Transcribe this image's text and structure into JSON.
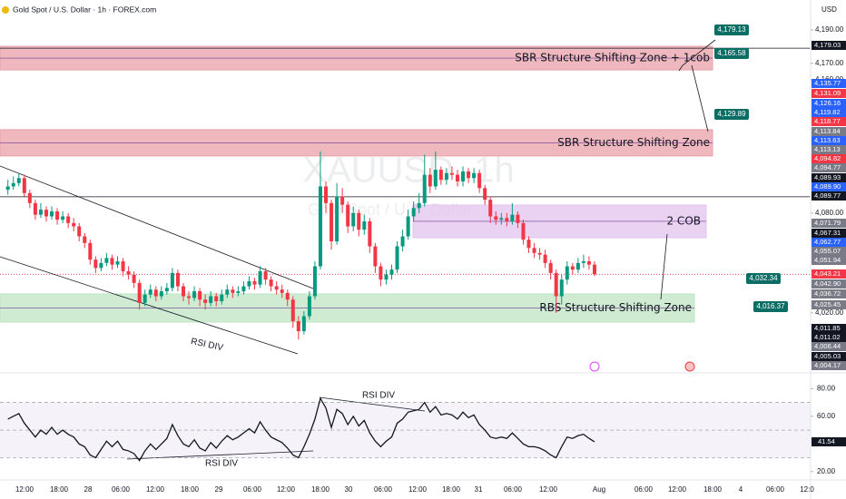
{
  "header": {
    "title": "Gold Spot / U.S. Dollar · 1h · FOREX.com",
    "currency": "USD"
  },
  "watermark": {
    "symbol": "XAUUSD, 1h",
    "name": "Gold Spot / U.S. Dollar"
  },
  "chart_data": [
    {
      "type": "candlestick",
      "up_color": "#089981",
      "down_color": "#f23645",
      "open": [
        4094,
        4096,
        4098,
        4101,
        4092,
        4086,
        4079,
        4082,
        4078,
        4081,
        4076,
        4078,
        4074,
        4072,
        4066,
        4062,
        4052,
        4047,
        4050,
        4053,
        4049,
        4051,
        4045,
        4043,
        4038,
        4026,
        4031,
        4034,
        4030,
        4033,
        4035,
        4044,
        4036,
        4030,
        4029,
        4033,
        4028,
        4026,
        4030,
        4027,
        4031,
        4034,
        4032,
        4033,
        4036,
        4039,
        4037,
        4045,
        4040,
        4036,
        4034,
        4032,
        4028,
        4015,
        4009,
        4018,
        4030,
        4048,
        4096,
        4086,
        4063,
        4090,
        4085,
        4072,
        4080,
        4070,
        4075,
        4060,
        4048,
        4040,
        4043,
        4046,
        4060,
        4066,
        4078,
        4083,
        4086,
        4103,
        4096,
        4106,
        4100,
        4104,
        4103,
        4099,
        4105,
        4101,
        4104,
        4095,
        4088,
        4078,
        4076,
        4077,
        4075,
        4079,
        4074,
        4064,
        4059,
        4056,
        4055,
        4050,
        4044,
        4030,
        4040,
        4048,
        4046,
        4050,
        4051,
        4049
      ],
      "high": [
        4100,
        4102,
        4104,
        4103,
        4094,
        4088,
        4086,
        4084,
        4084,
        4083,
        4081,
        4080,
        4077,
        4074,
        4068,
        4064,
        4054,
        4053,
        4056,
        4055,
        4054,
        4053,
        4048,
        4045,
        4040,
        4034,
        4037,
        4036,
        4036,
        4038,
        4047,
        4046,
        4038,
        4033,
        4036,
        4035,
        4031,
        4033,
        4032,
        4034,
        4037,
        4036,
        4036,
        4039,
        4042,
        4041,
        4048,
        4047,
        4042,
        4039,
        4037,
        4034,
        4030,
        4018,
        4021,
        4033,
        4051,
        4117,
        4099,
        4088,
        4098,
        4095,
        4087,
        4084,
        4082,
        4079,
        4077,
        4062,
        4050,
        4046,
        4049,
        4063,
        4070,
        4082,
        4087,
        4092,
        4115,
        4107,
        4117,
        4108,
        4107,
        4108,
        4106,
        4108,
        4107,
        4107,
        4106,
        4097,
        4090,
        4081,
        4080,
        4080,
        4086,
        4081,
        4076,
        4066,
        4062,
        4059,
        4058,
        4052,
        4046,
        4043,
        4051,
        4050,
        4053,
        4055,
        4054,
        4051
      ],
      "low": [
        4091,
        4094,
        4096,
        4090,
        4083,
        4076,
        4077,
        4075,
        4076,
        4073,
        4074,
        4071,
        4069,
        4063,
        4059,
        4049,
        4044,
        4045,
        4048,
        4046,
        4047,
        4042,
        4040,
        4035,
        4022,
        4024,
        4029,
        4027,
        4028,
        4031,
        4033,
        4033,
        4027,
        4025,
        4027,
        4024,
        4022,
        4024,
        4024,
        4025,
        4029,
        4029,
        4030,
        4031,
        4034,
        4034,
        4035,
        4037,
        4033,
        4031,
        4029,
        4024,
        4011,
        4004,
        4007,
        4016,
        4028,
        4046,
        4080,
        4058,
        4061,
        4080,
        4068,
        4069,
        4066,
        4067,
        4056,
        4044,
        4036,
        4037,
        4040,
        4044,
        4057,
        4064,
        4075,
        4080,
        4084,
        4092,
        4094,
        4097,
        4097,
        4100,
        4096,
        4096,
        4098,
        4098,
        4092,
        4085,
        4074,
        4073,
        4073,
        4072,
        4073,
        4071,
        4061,
        4056,
        4053,
        4052,
        4047,
        4040,
        4020,
        4025,
        4037,
        4043,
        4044,
        4047,
        4046,
        4042
      ],
      "close": [
        4096,
        4098,
        4101,
        4092,
        4086,
        4079,
        4082,
        4078,
        4081,
        4076,
        4078,
        4074,
        4072,
        4066,
        4062,
        4052,
        4047,
        4050,
        4053,
        4049,
        4051,
        4045,
        4043,
        4038,
        4026,
        4031,
        4034,
        4030,
        4033,
        4035,
        4044,
        4036,
        4030,
        4029,
        4033,
        4028,
        4026,
        4030,
        4027,
        4031,
        4034,
        4032,
        4033,
        4036,
        4039,
        4037,
        4045,
        4040,
        4036,
        4034,
        4032,
        4028,
        4015,
        4009,
        4018,
        4030,
        4048,
        4096,
        4086,
        4063,
        4090,
        4085,
        4072,
        4080,
        4070,
        4075,
        4060,
        4048,
        4040,
        4043,
        4046,
        4060,
        4066,
        4078,
        4083,
        4086,
        4103,
        4096,
        4106,
        4100,
        4104,
        4103,
        4099,
        4105,
        4101,
        4104,
        4095,
        4088,
        4078,
        4076,
        4077,
        4075,
        4079,
        4074,
        4064,
        4059,
        4056,
        4055,
        4050,
        4044,
        4030,
        4040,
        4048,
        4046,
        4050,
        4051,
        4049,
        4043.21
      ],
      "ylim": [
        3984.5,
        4208
      ],
      "yticks": [
        {
          "value": 4190,
          "label": "4,190.00"
        },
        {
          "value": 4170,
          "label": "4,170.00"
        },
        {
          "value": 4160,
          "label": "4,160.00"
        },
        {
          "value": 4080,
          "label": "4,080.00"
        },
        {
          "value": 4020,
          "label": "4,020.00"
        }
      ],
      "hlines": [
        4179.03,
        4089.77
      ],
      "zones": [
        {
          "label": "SBR Structure Shifting Zone + 1cob",
          "low": 4166,
          "high": 4180.2,
          "color": "#e8a0a8"
        },
        {
          "label": "SBR Structure Shifting Zone",
          "low": 4114.3,
          "high": 4130.1,
          "color": "#e8a0a8"
        },
        {
          "label": "2 COB",
          "low": 4065.2,
          "high": 4084.8,
          "color": "#e3c4ee"
        },
        {
          "label": "RBS Structure Shifting Zone",
          "low": 4014.5,
          "high": 4031.4,
          "color": "#bfe5c4"
        }
      ],
      "annotations": [
        "4,179.13",
        "4,165.58",
        "4,129.89",
        "4,032.34",
        "4,016.37",
        "RSI DIV"
      ],
      "price_labels": [
        {
          "value": 4179.03,
          "label": "4,179.03",
          "color": "#131722"
        },
        {
          "value": 4135.77,
          "label": "4,135.77",
          "color": "#2962ff"
        },
        {
          "value": 4131.09,
          "label": "4,131.09",
          "color": "#f23645"
        },
        {
          "value": 4126.16,
          "label": "4,126.16",
          "color": "#2962ff"
        },
        {
          "value": 4119.82,
          "label": "4,119.82",
          "color": "#2962ff"
        },
        {
          "value": 4118.77,
          "label": "4,118.77",
          "color": "#f23645"
        },
        {
          "value": 4113.84,
          "label": "4,113.84",
          "color": "#787b86"
        },
        {
          "value": 4113.63,
          "label": "4,113.63",
          "color": "#2962ff"
        },
        {
          "value": 4113.13,
          "label": "4,113.13",
          "color": "#787b86"
        },
        {
          "value": 4094.82,
          "label": "4,094.82",
          "color": "#f23645"
        },
        {
          "value": 4094.77,
          "label": "4,094.77",
          "color": "#787b86"
        },
        {
          "value": 4089.93,
          "label": "4,089.93",
          "color": "#131722"
        },
        {
          "value": 4089.9,
          "label": "4,089.90",
          "color": "#2962ff"
        },
        {
          "value": 4089.77,
          "label": "4,089.77",
          "color": "#131722"
        },
        {
          "value": 4071.79,
          "label": "4,071.79",
          "color": "#787b86"
        },
        {
          "value": 4067.31,
          "label": "4,067.31",
          "color": "#131722"
        },
        {
          "value": 4062.77,
          "label": "4,062.77",
          "color": "#2962ff"
        },
        {
          "value": 4055.07,
          "label": "4,055.07",
          "color": "#787b86"
        },
        {
          "value": 4051.94,
          "label": "4,051.94",
          "color": "#787b86"
        },
        {
          "value": 4043.21,
          "label": "4,043.21",
          "color": "#f23645"
        },
        {
          "value": 4042.9,
          "label": "4,042.90",
          "color": "#787b86"
        },
        {
          "value": 4036.72,
          "label": "4,036.72",
          "color": "#787b86"
        },
        {
          "value": 4025.45,
          "label": "4,025.45",
          "color": "#787b86"
        },
        {
          "value": 4011.85,
          "label": "4,011.85",
          "color": "#131722"
        },
        {
          "value": 4011.02,
          "label": "4,011.02",
          "color": "#131722"
        },
        {
          "value": 4006.44,
          "label": "4,006.44",
          "color": "#787b86"
        },
        {
          "value": 4005.03,
          "label": "4,005.03",
          "color": "#131722"
        },
        {
          "value": 4004.17,
          "label": "4,004.17",
          "color": "#787b86"
        }
      ],
      "x_labels": [
        "12:00",
        "18:00",
        "28",
        "06:00",
        "12:00",
        "18:00",
        "29",
        "06:00",
        "12:00",
        "18:00",
        "30",
        "06:00",
        "12:00",
        "18:00",
        "31",
        "06:00",
        "12:00",
        "Aug",
        "06:00",
        "12:00",
        "18:00",
        "4",
        "06:00",
        "12:0"
      ]
    },
    {
      "type": "line",
      "color": "#131722",
      "values": [
        58,
        60,
        62,
        55,
        50,
        45,
        50,
        47,
        52,
        47,
        50,
        47,
        45,
        40,
        38,
        32,
        30,
        36,
        42,
        38,
        42,
        36,
        35,
        33,
        28,
        35,
        40,
        36,
        40,
        44,
        54,
        46,
        40,
        38,
        43,
        37,
        35,
        41,
        37,
        42,
        46,
        43,
        45,
        48,
        51,
        48,
        56,
        50,
        45,
        43,
        41,
        37,
        32,
        30,
        38,
        47,
        58,
        73,
        66,
        52,
        65,
        62,
        54,
        60,
        53,
        57,
        48,
        42,
        38,
        42,
        45,
        55,
        58,
        63,
        64,
        65,
        70,
        63,
        67,
        61,
        62,
        61,
        58,
        63,
        59,
        61,
        54,
        50,
        45,
        44,
        45,
        44,
        48,
        44,
        40,
        38,
        38,
        37,
        35,
        32,
        30,
        38,
        45,
        44,
        46,
        47,
        44,
        41.54
      ],
      "ylim": [
        14.6,
        90.1
      ],
      "yticks": [
        {
          "value": 80,
          "label": "80.00"
        },
        {
          "value": 60,
          "label": "60.00"
        },
        {
          "value": 20,
          "label": "20.00"
        }
      ],
      "levels": [
        70,
        50,
        30
      ],
      "annotations": [
        "RSI DIV",
        "RSI DIV"
      ]
    }
  ]
}
